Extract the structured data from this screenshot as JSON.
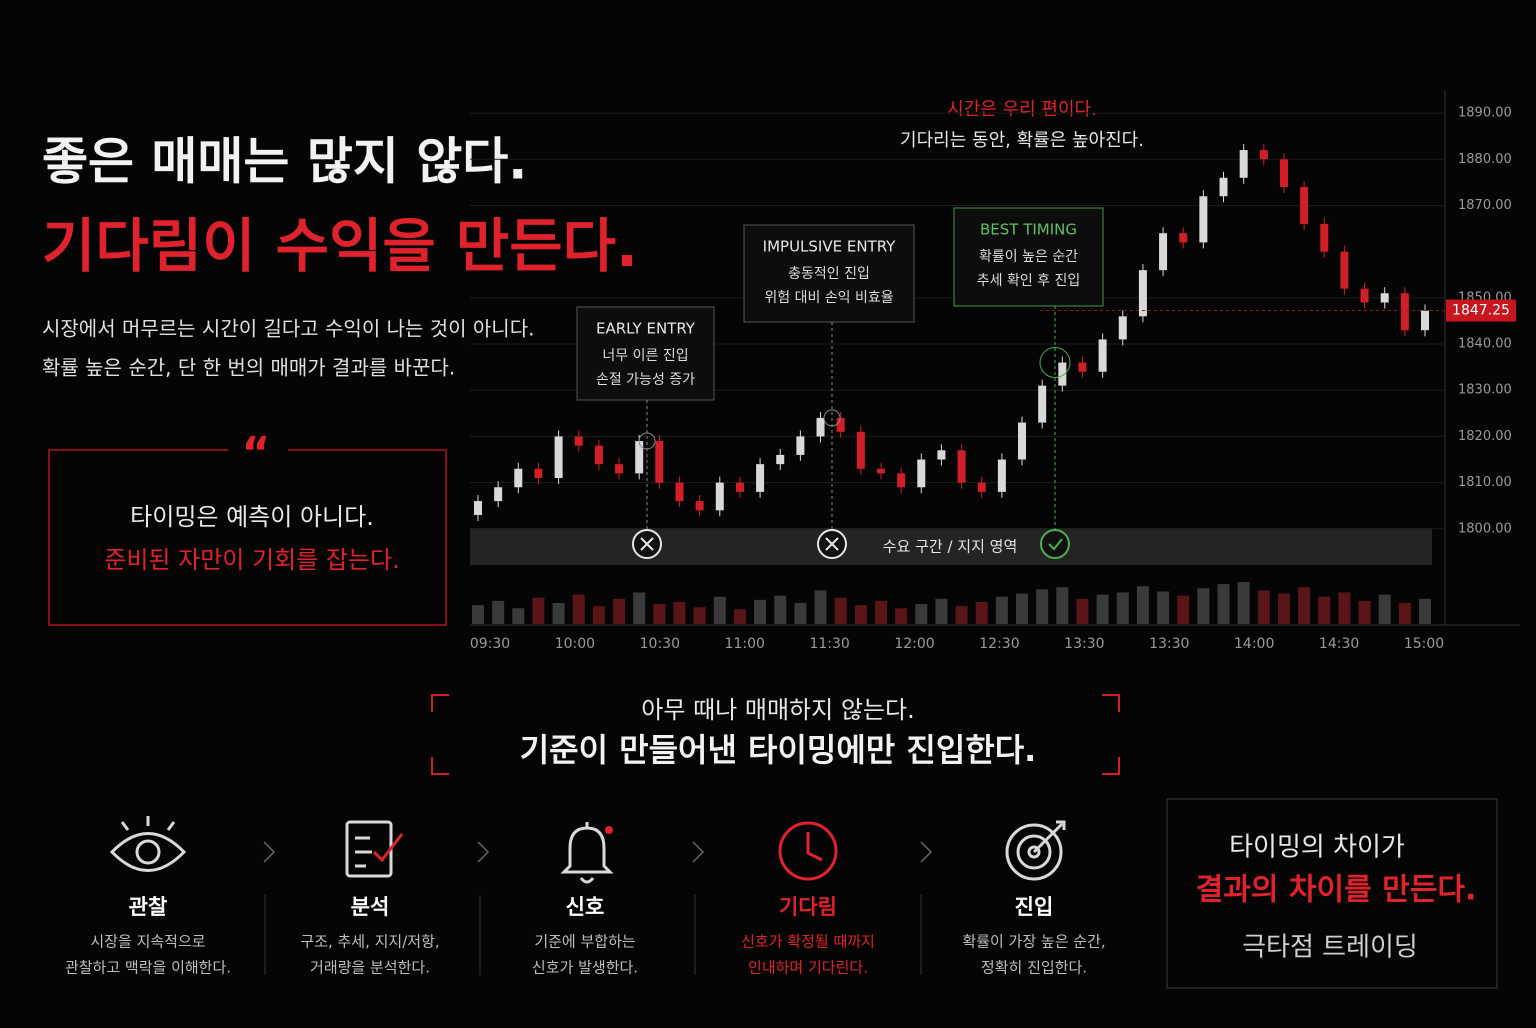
{
  "header": {
    "line1": "좋은 매매는 많지 않다.",
    "line2": "기다림이 수익을 만든다.",
    "body": [
      "시장에서 머무르는 시간이 길다고 수익이 나는 것이 아니다.",
      "확률 높은 순간, 단 한 번의 매매가 결과를 바꾼다."
    ]
  },
  "quote": {
    "mark": "“",
    "line1": "타이밍은 예측이 아니다.",
    "line2": "준비된 자만이 기회를 잡는다."
  },
  "chart_data": {
    "type": "candlestick",
    "notes": [
      "시간은 우리 편이다.",
      "기다리는 동안, 확률은 높아진다."
    ],
    "annotations": [
      {
        "title": "EARLY ENTRY",
        "lines": [
          "너무 이른 진입",
          "손절 가능성 증가"
        ]
      },
      {
        "title": "IMPULSIVE ENTRY",
        "lines": [
          "충동적인 진입",
          "위험 대비 손익 비효율"
        ]
      },
      {
        "title": "BEST TIMING",
        "lines": [
          "확률이 높은 순간",
          "추세 확인 후 진입"
        ]
      }
    ],
    "zone_label": "수요 구간 / 지지 영역",
    "categories": [
      "09:30",
      "10:00",
      "10:30",
      "11:00",
      "11:30",
      "12:00",
      "12:30",
      "13:30",
      "13:30",
      "14:00",
      "14:30",
      "15:00"
    ],
    "open": [
      1803,
      1806,
      1809,
      1813,
      1811,
      1820,
      1818,
      1814,
      1812,
      1819,
      1810,
      1806,
      1804,
      1810,
      1808,
      1814,
      1816,
      1820,
      1824,
      1821,
      1813,
      1812,
      1809,
      1815,
      1817,
      1810,
      1808,
      1815,
      1823,
      1831,
      1836,
      1834,
      1841,
      1846,
      1856,
      1864,
      1862,
      1872,
      1876,
      1882,
      1880,
      1874,
      1866,
      1860,
      1852,
      1849,
      1851,
      1843
    ],
    "close": [
      1806,
      1809,
      1813,
      1811,
      1820,
      1818,
      1814,
      1812,
      1819,
      1810,
      1806,
      1804,
      1810,
      1808,
      1814,
      1816,
      1820,
      1824,
      1821,
      1813,
      1812,
      1809,
      1815,
      1817,
      1810,
      1808,
      1815,
      1823,
      1831,
      1836,
      1834,
      1841,
      1846,
      1856,
      1864,
      1862,
      1872,
      1876,
      1882,
      1880,
      1874,
      1866,
      1860,
      1852,
      1849,
      1851,
      1843,
      1847.25
    ],
    "volume": [
      18,
      22,
      15,
      25,
      20,
      28,
      17,
      24,
      30,
      19,
      21,
      16,
      26,
      14,
      23,
      27,
      20,
      32,
      25,
      18,
      22,
      15,
      19,
      24,
      17,
      21,
      26,
      29,
      33,
      35,
      24,
      28,
      30,
      36,
      31,
      27,
      34,
      38,
      40,
      32,
      29,
      35,
      26,
      30,
      22,
      28,
      20,
      24
    ],
    "up_color": "#d9d9d9",
    "down_color": "#d11f2a",
    "ylim": [
      1790,
      1895
    ],
    "yticks": [
      {
        "value": 1800,
        "label": "1800.00"
      },
      {
        "value": 1810,
        "label": "1810.00"
      },
      {
        "value": 1820,
        "label": "1820.00"
      },
      {
        "value": 1830,
        "label": "1830.00"
      },
      {
        "value": 1840,
        "label": "1840.00"
      },
      {
        "value": 1850,
        "label": "1850.00"
      },
      {
        "value": 1870,
        "label": "1870.00"
      },
      {
        "value": 1880,
        "label": "1880.00"
      },
      {
        "value": 1890,
        "label": "1890.00"
      }
    ],
    "grid": true
  },
  "callout": {
    "line1": "아무 때나 매매하지 않는다.",
    "line2": "기준이 만들어낸 타이밍에만 진입한다."
  },
  "steps": [
    {
      "title": "관찰",
      "desc": [
        "시장을 지속적으로",
        "관찰하고 맥락을 이해한다."
      ],
      "color": "#ffffff"
    },
    {
      "title": "분석",
      "desc": [
        "구조, 추세, 지지/저항,",
        "거래량을 분석한다."
      ],
      "color": "#ffffff"
    },
    {
      "title": "신호",
      "desc": [
        "기준에 부합하는",
        "신호가 발생한다."
      ],
      "color": "#ffffff"
    },
    {
      "title": "기다림",
      "desc": [
        "신호가 확정될 때까지",
        "인내하며 기다린다."
      ],
      "color": "#e0222d"
    },
    {
      "title": "진입",
      "desc": [
        "확률이 가장 높은 순간,",
        "정확히 진입한다."
      ],
      "color": "#ffffff"
    }
  ],
  "summary": {
    "line1": "타이밍의 차이가",
    "line2": "결과의 차이를 만든다.",
    "brand": "극타점 트레이딩"
  }
}
